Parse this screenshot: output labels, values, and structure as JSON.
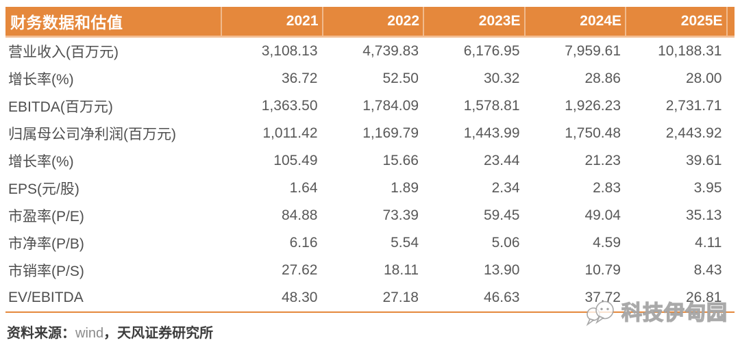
{
  "table": {
    "title": "财务数据和估值",
    "columns": [
      "2021",
      "2022",
      "2023E",
      "2024E",
      "2025E"
    ],
    "rows": [
      {
        "label": "营业收入(百万元)",
        "values": [
          "3,108.13",
          "4,739.83",
          "6,176.95",
          "7,959.61",
          "10,188.31"
        ]
      },
      {
        "label": "增长率(%)",
        "values": [
          "36.72",
          "52.50",
          "30.32",
          "28.86",
          "28.00"
        ]
      },
      {
        "label": "EBITDA(百万元)",
        "values": [
          "1,363.50",
          "1,784.09",
          "1,578.81",
          "1,926.23",
          "2,731.71"
        ]
      },
      {
        "label": "归属母公司净利润(百万元)",
        "values": [
          "1,011.42",
          "1,169.79",
          "1,443.99",
          "1,750.48",
          "2,443.92"
        ]
      },
      {
        "label": "增长率(%)",
        "values": [
          "105.49",
          "15.66",
          "23.44",
          "21.23",
          "39.61"
        ]
      },
      {
        "label": "EPS(元/股)",
        "values": [
          "1.64",
          "1.89",
          "2.34",
          "2.83",
          "3.95"
        ]
      },
      {
        "label": "市盈率(P/E)",
        "values": [
          "84.88",
          "73.39",
          "59.45",
          "49.04",
          "35.13"
        ]
      },
      {
        "label": "市净率(P/B)",
        "values": [
          "6.16",
          "5.54",
          "5.06",
          "4.59",
          "4.11"
        ]
      },
      {
        "label": "市销率(P/S)",
        "values": [
          "27.62",
          "18.11",
          "13.90",
          "10.79",
          "8.43"
        ]
      },
      {
        "label": "EV/EBITDA",
        "values": [
          "48.30",
          "27.18",
          "46.63",
          "37.72",
          "26.81"
        ]
      }
    ]
  },
  "source": {
    "prefix": "资料来源：",
    "vendor": "wind",
    "suffix": "，天风证券研究所"
  },
  "watermark": {
    "text": "科技伊甸园",
    "icon": "chat-bubbles-icon"
  },
  "colors": {
    "header_bg": "#E5883C",
    "header_divider_light": "#F3BE94",
    "header_text": "#FFFFFF",
    "body_text": "#585858",
    "label_text": "#4E4E4E",
    "source_text": "#3C3C3C",
    "vendor_text": "#8A8A8A",
    "bottom_border": "#E5883C",
    "watermark_gray": "#9E9E9E"
  }
}
